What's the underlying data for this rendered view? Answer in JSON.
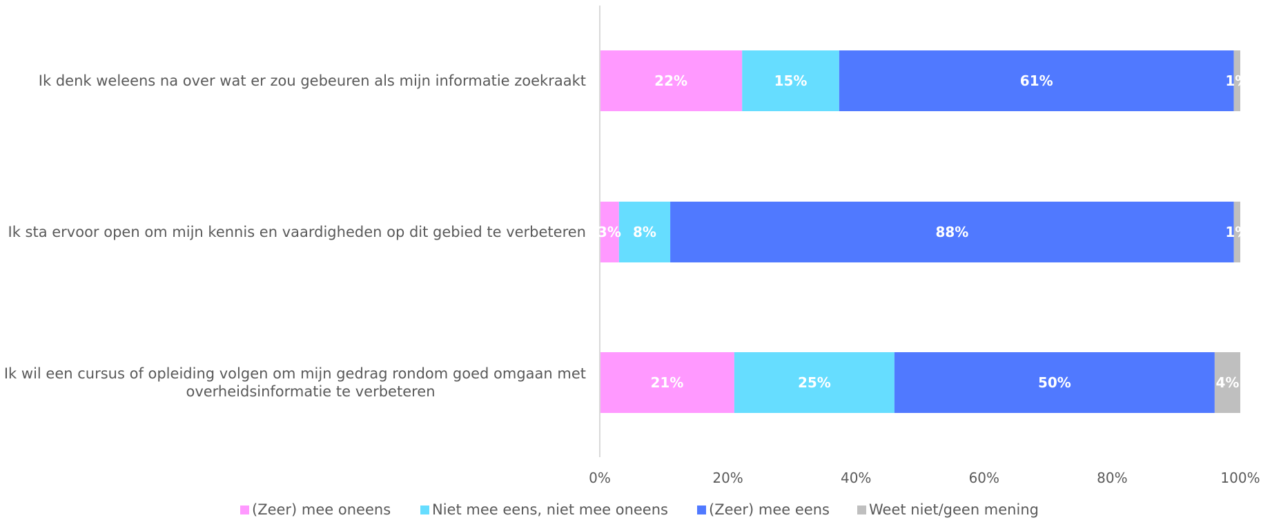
{
  "chart_data": {
    "type": "bar",
    "orientation": "horizontal",
    "stacked": "percent",
    "categories": [
      [
        "Ik denk weleens na over wat er zou gebeuren als mijn informatie zoekraakt"
      ],
      [
        "Ik sta ervoor open om mijn kennis en vaardigheden op dit gebied te verbeteren"
      ],
      [
        "Ik wil een cursus of opleiding volgen om mijn gedrag rondom goed omgaan met",
        "overheidsinformatie te verbeteren"
      ]
    ],
    "series": [
      {
        "name": "(Zeer) mee oneens",
        "color": "#FF99FF",
        "values": [
          22,
          3,
          21
        ],
        "labels": [
          "22%",
          "3%",
          "21%"
        ]
      },
      {
        "name": "Niet mee eens, niet mee oneens",
        "color": "#66DDFF",
        "values": [
          15,
          8,
          25
        ],
        "labels": [
          "15%",
          "8%",
          "25%"
        ]
      },
      {
        "name": "(Zeer) mee eens",
        "color": "#5079FF",
        "values": [
          61,
          88,
          50
        ],
        "labels": [
          "61%",
          "88%",
          "50%"
        ]
      },
      {
        "name": "Weet niet/geen mening",
        "color": "#BFBFBF",
        "values": [
          1,
          1,
          4
        ],
        "labels": [
          "1%",
          "1%",
          "4%"
        ]
      }
    ],
    "xlim": [
      0,
      100
    ],
    "x_ticks": [
      "0%",
      "20%",
      "40%",
      "60%",
      "80%",
      "100%"
    ],
    "grid": false,
    "legend_position": "bottom",
    "title": "",
    "xlabel": "",
    "ylabel": ""
  }
}
